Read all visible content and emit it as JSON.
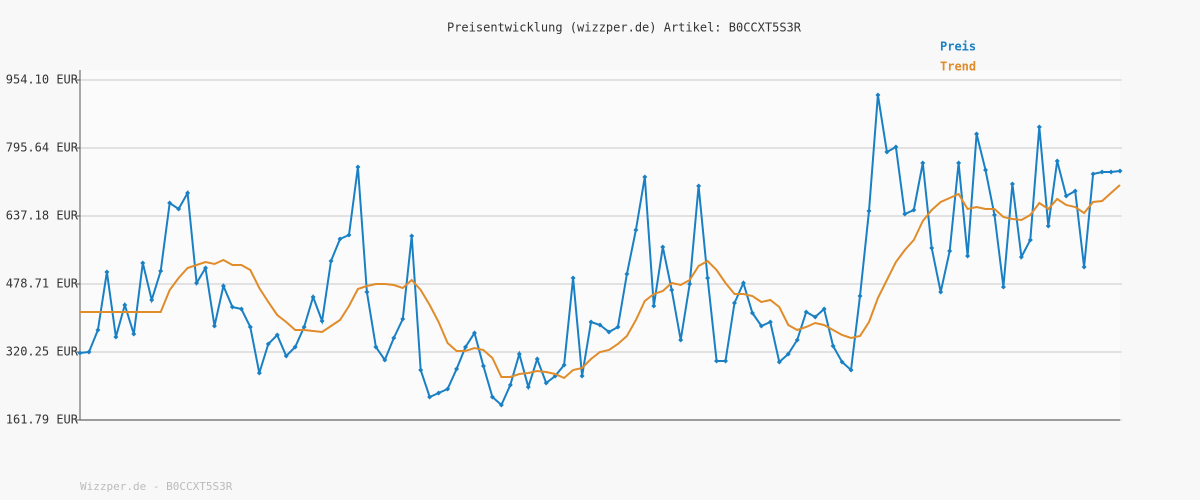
{
  "chart_data": {
    "type": "line",
    "title": "Preisentwicklung (wizzper.de) Artikel: B0CCXT5S3R",
    "footer": "Wizzper.de - B0CCXT5S3R",
    "ylim": [
      161.79,
      954.1
    ],
    "yticks": [
      {
        "value": 161.79,
        "label": "161.79 EUR"
      },
      {
        "value": 320.25,
        "label": "320.25 EUR"
      },
      {
        "value": 478.71,
        "label": "478.71 EUR"
      },
      {
        "value": 637.18,
        "label": "637.18 EUR"
      },
      {
        "value": 795.64,
        "label": "795.64 EUR"
      },
      {
        "value": 954.1,
        "label": "954.10 EUR"
      }
    ],
    "grid": true,
    "series": [
      {
        "name": "Preis",
        "color": "#1a80c4",
        "markers": true,
        "values": [
          317.9,
          320.3,
          371.5,
          506.7,
          355.2,
          429.8,
          362.2,
          527.7,
          441.4,
          509.0,
          667.5,
          653.5,
          690.8,
          481.1,
          516.0,
          380.8,
          474.1,
          425.1,
          420.5,
          378.5,
          271.3,
          338.9,
          359.9,
          310.9,
          331.9,
          378.5,
          448.4,
          392.5,
          532.3,
          583.6,
          592.9,
          751.4,
          460.1,
          331.9,
          301.6,
          352.9,
          397.2,
          590.6,
          278.3,
          215.4,
          224.7,
          234.0,
          280.6,
          331.9,
          364.5,
          287.6,
          215.4,
          196.8,
          243.4,
          315.6,
          238.7,
          303.9,
          248.0,
          264.3,
          290.0,
          492.7,
          264.3,
          390.2,
          383.2,
          366.9,
          378.5,
          502.0,
          604.6,
          728.1,
          427.5,
          564.9,
          464.7,
          348.2,
          478.7,
          707.1,
          492.7,
          299.3,
          299.3,
          434.4,
          481.1,
          411.1,
          380.8,
          390.2,
          297.0,
          315.6,
          348.2,
          413.5,
          401.8,
          420.5,
          334.2,
          297.0,
          278.3,
          450.8,
          648.8,
          919.1,
          786.3,
          798.0,
          641.8,
          651.2,
          760.7,
          562.6,
          460.1,
          555.6,
          760.7,
          544.0,
          828.3,
          744.4,
          639.5,
          471.7,
          711.7,
          541.6,
          581.3,
          844.6,
          613.9,
          765.3,
          683.8,
          695.4,
          518.3,
          735.0,
          739.7,
          739.7,
          742.0
        ]
      },
      {
        "name": "Trend",
        "color": "#e08c2a",
        "markers": false,
        "values": [
          413.5,
          413.5,
          413.5,
          413.5,
          413.5,
          413.5,
          413.5,
          413.5,
          413.5,
          413.5,
          464.7,
          492.7,
          516.0,
          523.0,
          530.0,
          525.3,
          534.6,
          523.0,
          523.0,
          511.3,
          469.4,
          436.8,
          406.5,
          390.2,
          371.5,
          371.5,
          369.2,
          366.9,
          380.8,
          394.8,
          427.5,
          467.1,
          474.1,
          478.7,
          478.7,
          476.4,
          469.4,
          488.0,
          464.7,
          429.8,
          390.2,
          341.2,
          322.6,
          322.6,
          329.6,
          324.9,
          306.3,
          262.0,
          262.0,
          269.0,
          271.3,
          276.0,
          273.7,
          269.0,
          259.7,
          278.3,
          283.0,
          303.9,
          320.3,
          324.9,
          338.9,
          357.5,
          394.8,
          439.1,
          455.4,
          462.4,
          481.1,
          476.4,
          488.0,
          520.7,
          532.3,
          511.3,
          481.1,
          455.4,
          455.4,
          450.8,
          436.8,
          441.4,
          425.1,
          383.2,
          371.5,
          378.5,
          387.8,
          383.2,
          371.5,
          359.9,
          352.9,
          357.5,
          390.2,
          446.1,
          488.0,
          530.0,
          557.9,
          581.3,
          625.5,
          651.2,
          669.8,
          679.1,
          688.4,
          653.5,
          658.2,
          653.5,
          653.5,
          634.8,
          630.2,
          627.9,
          639.5,
          667.5,
          653.5,
          676.8,
          662.8,
          658.2,
          644.2,
          669.8,
          672.1,
          690.8,
          709.4
        ]
      }
    ]
  }
}
